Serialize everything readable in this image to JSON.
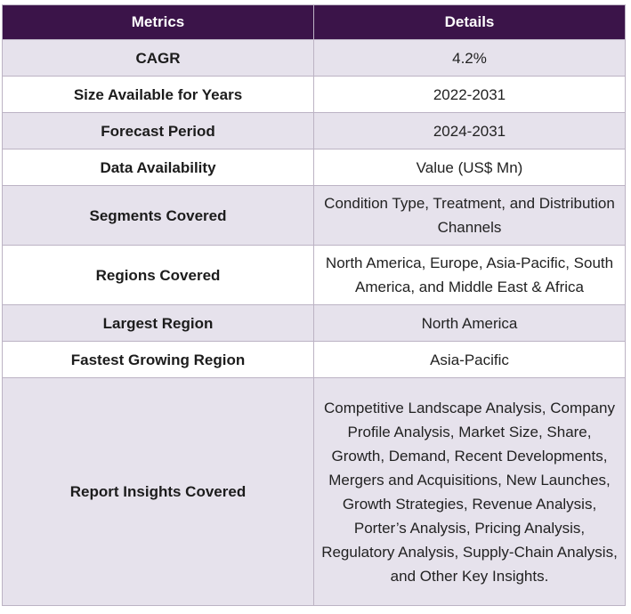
{
  "table": {
    "headers": [
      "Metrics",
      "Details"
    ],
    "rows": [
      {
        "metric": "CAGR",
        "detail": "4.2%"
      },
      {
        "metric": "Size Available for Years",
        "detail": "2022-2031"
      },
      {
        "metric": "Forecast Period",
        "detail": "2024-2031"
      },
      {
        "metric": "Data Availability",
        "detail": "Value (US$ Mn)"
      },
      {
        "metric": "Segments Covered",
        "detail": "Condition Type, Treatment, and Distribution Channels"
      },
      {
        "metric": "Regions Covered",
        "detail": "North America, Europe, Asia-Pacific, South America, and Middle East & Africa"
      },
      {
        "metric": "Largest Region",
        "detail": "North America"
      },
      {
        "metric": "Fastest Growing Region",
        "detail": "Asia-Pacific"
      },
      {
        "metric": "Report Insights Covered",
        "detail": "Competitive Landscape Analysis, Company Profile Analysis, Market Size, Share, Growth, Demand, Recent Developments, Mergers and Acquisitions, New Launches, Growth Strategies, Revenue Analysis, Porter’s Analysis, Pricing Analysis, Regulatory Analysis, Supply-Chain Analysis, and Other Key Insights."
      }
    ]
  },
  "colors": {
    "header_background": "#3b1449",
    "header_text": "#ffffff",
    "shaded_row": "#e6e2ec",
    "plain_row": "#ffffff",
    "border": "#bcb3c4"
  }
}
